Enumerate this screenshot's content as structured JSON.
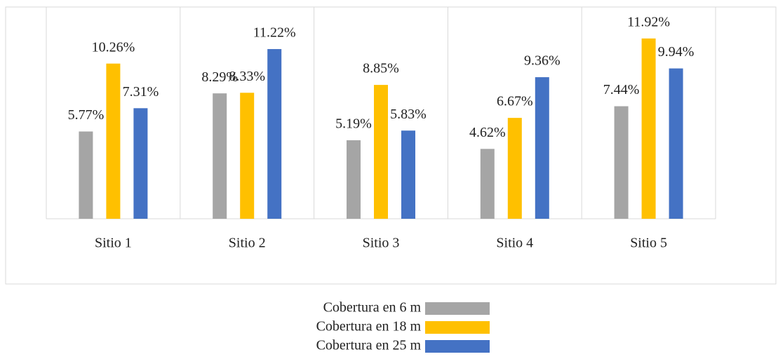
{
  "chart_data": {
    "type": "bar",
    "categories": [
      "Sitio 1",
      "Sitio 2",
      "Sitio 3",
      "Sitio 4",
      "Sitio 5"
    ],
    "series": [
      {
        "name": "Cobertura en 6 m",
        "color": "#a5a5a5",
        "values": [
          5.77,
          8.29,
          5.19,
          4.62,
          7.44
        ],
        "value_labels": [
          "5.77%",
          "8.29%",
          "5.19%",
          "4.62%",
          "7.44%"
        ]
      },
      {
        "name": "Cobertura en 18 m",
        "color": "#ffc000",
        "values": [
          10.26,
          8.33,
          8.85,
          6.67,
          11.92
        ],
        "value_labels": [
          "10.26%",
          "8.33%",
          "8.85%",
          "6.67%",
          "11.92%"
        ]
      },
      {
        "name": "Cobertura en 25 m",
        "color": "#4472c4",
        "values": [
          7.31,
          11.22,
          5.83,
          9.36,
          9.94
        ],
        "value_labels": [
          "7.31%",
          "11.22%",
          "5.83%",
          "9.36%",
          "9.94%"
        ]
      }
    ],
    "ylim": [
      0,
      14
    ],
    "legend": "bottom"
  }
}
